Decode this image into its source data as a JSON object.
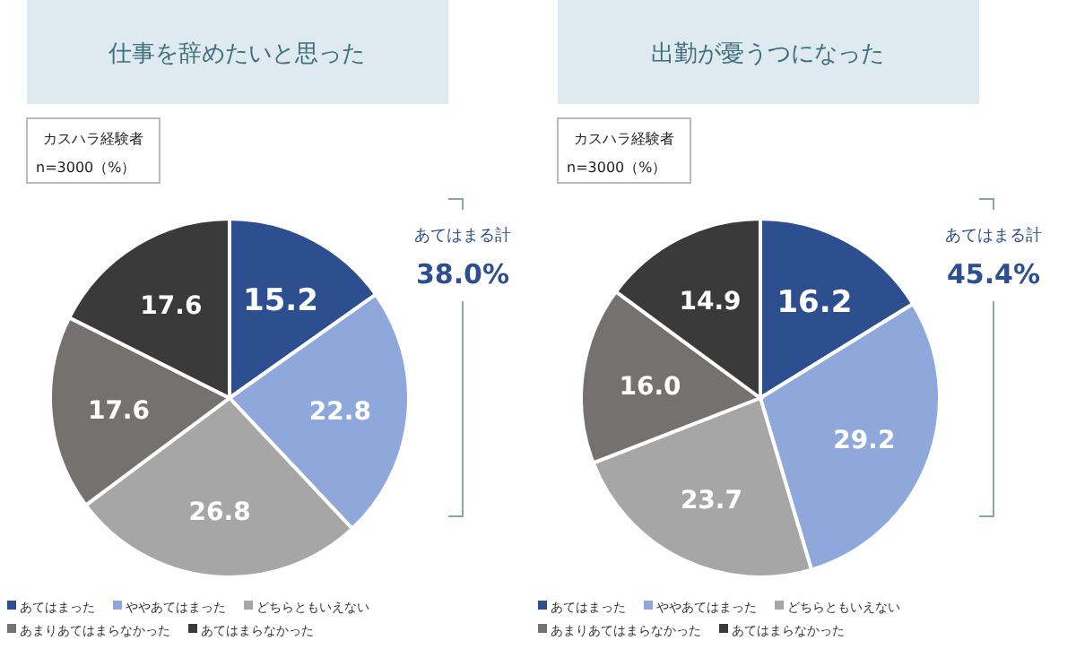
{
  "chart_data": [
    {
      "type": "pie",
      "title": "仕事を辞めたいと思った",
      "categories": [
        "あてはまった",
        "ややあてはまった",
        "どちらともいえない",
        "あまりあてはまらなかった",
        "あてはまらなかった"
      ],
      "values": [
        15.2,
        22.8,
        26.8,
        17.6,
        17.6
      ],
      "value_labels": [
        "15.2",
        "22.8",
        "26.8",
        "17.6",
        "17.6"
      ],
      "colors": [
        "#2e4f8f",
        "#8fa8dc",
        "#a6a6a6",
        "#767171",
        "#3a3a3a"
      ],
      "legend": "bottom",
      "annotations": [
        "カスハラ経験者",
        "n=3000（%）",
        "あてはまる計",
        "38.0%"
      ]
    },
    {
      "type": "pie",
      "title": "出勤が憂うつになった",
      "categories": [
        "あてはまった",
        "ややあてはまった",
        "どちらともいえない",
        "あまりあてはまらなかった",
        "あてはまらなかった"
      ],
      "values": [
        16.2,
        29.2,
        23.7,
        16.0,
        14.9
      ],
      "value_labels": [
        "16.2",
        "29.2",
        "23.7",
        "16.0",
        "14.9"
      ],
      "colors": [
        "#2e4f8f",
        "#8fa8dc",
        "#a6a6a6",
        "#767171",
        "#3a3a3a"
      ],
      "legend": "bottom",
      "annotations": [
        "カスハラ経験者",
        "n=3000（%）",
        "あてはまる計",
        "45.4%"
      ]
    }
  ]
}
